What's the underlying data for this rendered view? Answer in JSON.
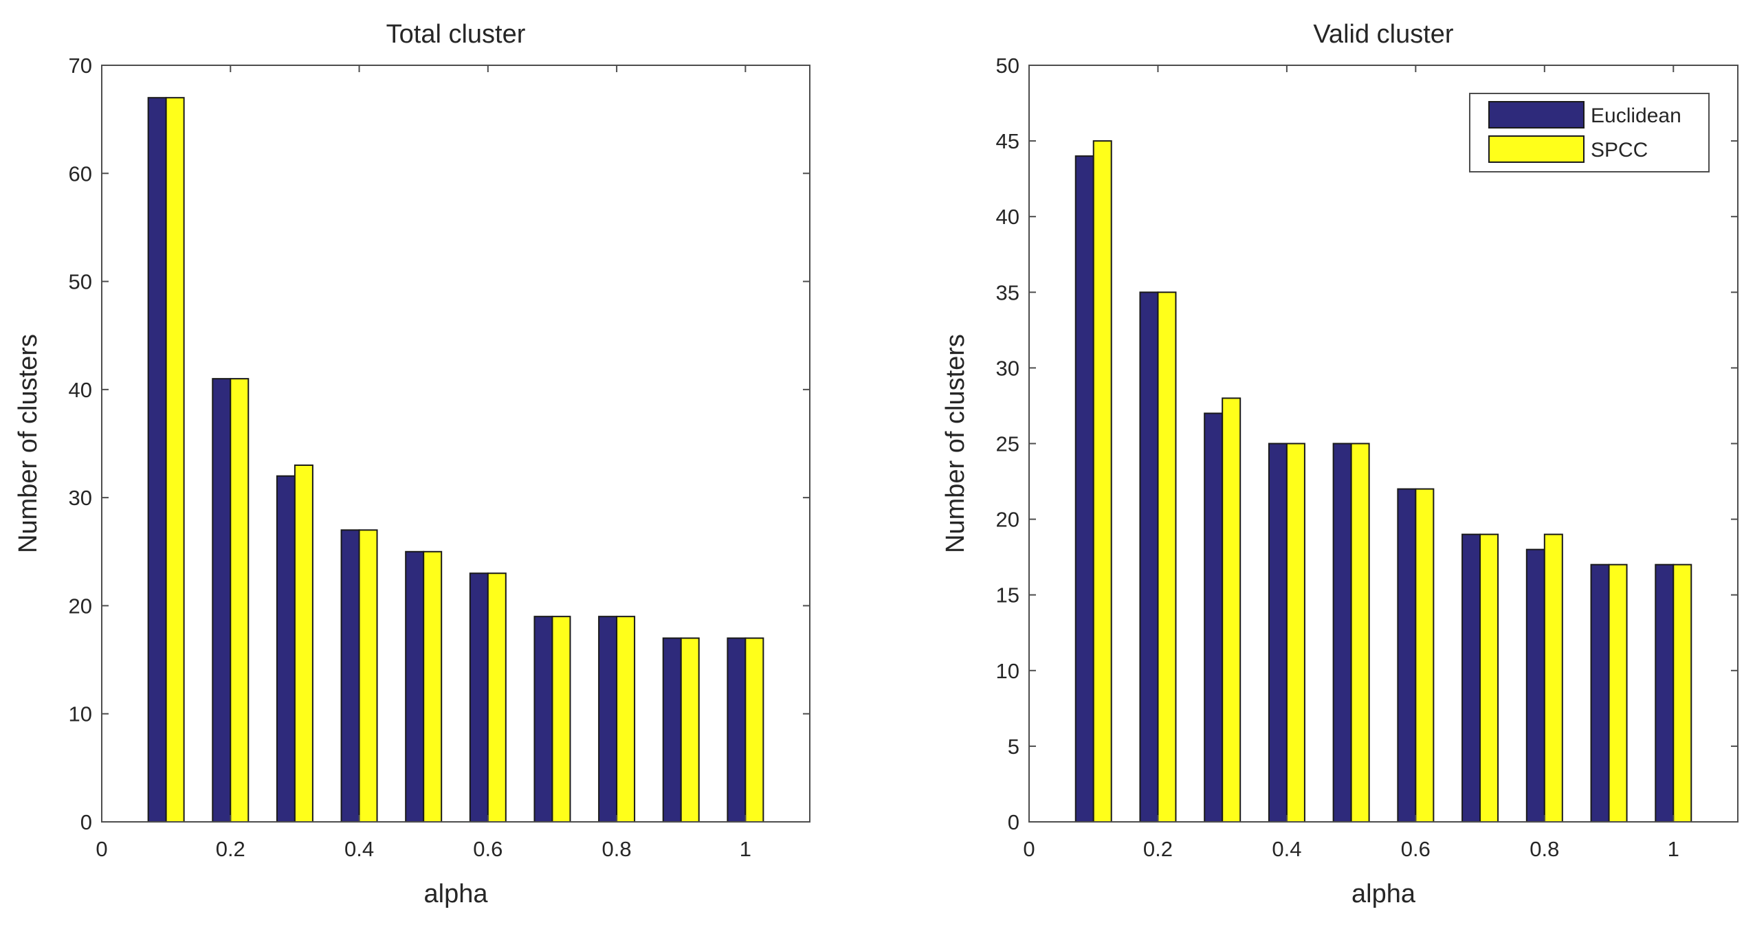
{
  "colors": {
    "euclidean": "#2E2A7B",
    "spcc": "#FFFF1A",
    "axis": "#4D4D4D",
    "bar_edge": "#1A1A1A"
  },
  "chart_data": [
    {
      "type": "bar",
      "title": "Total cluster",
      "xlabel": "alpha",
      "ylabel": "Number of clusters",
      "xlim": [
        0,
        1.1
      ],
      "ylim": [
        0,
        70
      ],
      "xticks": [
        0,
        0.2,
        0.4,
        0.6,
        0.8,
        1
      ],
      "xtick_labels": [
        "0",
        "0.2",
        "0.4",
        "0.6",
        "0.8",
        "1"
      ],
      "yticks": [
        0,
        10,
        20,
        30,
        40,
        50,
        60,
        70
      ],
      "ytick_labels": [
        "0",
        "10",
        "20",
        "30",
        "40",
        "50",
        "60",
        "70"
      ],
      "x": [
        0.1,
        0.2,
        0.3,
        0.4,
        0.5,
        0.6,
        0.7,
        0.8,
        0.9,
        1.0
      ],
      "series": [
        {
          "name": "Euclidean",
          "values": [
            67,
            41,
            32,
            27,
            25,
            23,
            19,
            19,
            17,
            17
          ]
        },
        {
          "name": "SPCC",
          "values": [
            67,
            41,
            33,
            27,
            25,
            23,
            19,
            19,
            17,
            17
          ]
        }
      ],
      "legend": null
    },
    {
      "type": "bar",
      "title": "Valid cluster",
      "xlabel": "alpha",
      "ylabel": "Number of clusters",
      "xlim": [
        0,
        1.1
      ],
      "ylim": [
        0,
        50
      ],
      "xticks": [
        0,
        0.2,
        0.4,
        0.6,
        0.8,
        1
      ],
      "xtick_labels": [
        "0",
        "0.2",
        "0.4",
        "0.6",
        "0.8",
        "1"
      ],
      "yticks": [
        0,
        5,
        10,
        15,
        20,
        25,
        30,
        35,
        40,
        45,
        50
      ],
      "ytick_labels": [
        "0",
        "5",
        "10",
        "15",
        "20",
        "25",
        "30",
        "35",
        "40",
        "45",
        "50"
      ],
      "x": [
        0.1,
        0.2,
        0.3,
        0.4,
        0.5,
        0.6,
        0.7,
        0.8,
        0.9,
        1.0
      ],
      "series": [
        {
          "name": "Euclidean",
          "values": [
            44,
            35,
            27,
            25,
            25,
            22,
            19,
            18,
            17,
            17
          ]
        },
        {
          "name": "SPCC",
          "values": [
            45,
            35,
            28,
            25,
            25,
            22,
            19,
            19,
            17,
            17
          ]
        }
      ],
      "legend": {
        "position": "top-right",
        "entries": [
          "Euclidean",
          "SPCC"
        ]
      }
    }
  ]
}
